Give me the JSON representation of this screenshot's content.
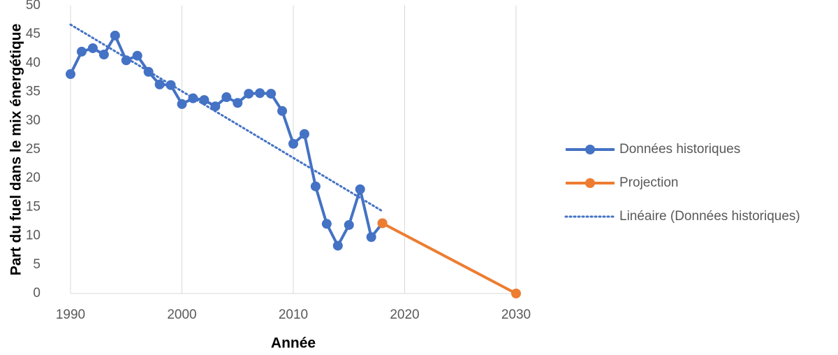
{
  "chart_data": {
    "type": "line",
    "x_label": "Année",
    "y_label": "Part du fuel dans le mix énergétique",
    "xlim": [
      1990,
      2030
    ],
    "xticks": [
      1990,
      2000,
      2010,
      2020,
      2030
    ],
    "ylim": [
      0,
      50
    ],
    "yticks": [
      0,
      5,
      10,
      15,
      20,
      25,
      30,
      35,
      40,
      45,
      50
    ],
    "xgrid": true,
    "legend": "right",
    "series": [
      {
        "name": "Données historiques",
        "color": "#4472c4",
        "markers": true,
        "line_style": "solid",
        "x": [
          1990,
          1991,
          1992,
          1993,
          1994,
          1995,
          1996,
          1997,
          1998,
          1999,
          2000,
          2001,
          2002,
          2003,
          2004,
          2005,
          2006,
          2007,
          2008,
          2009,
          2010,
          2011,
          2012,
          2013,
          2014,
          2015,
          2016,
          2017,
          2018
        ],
        "values": [
          38.1,
          42.0,
          42.6,
          41.5,
          44.8,
          40.5,
          41.3,
          38.5,
          36.3,
          36.2,
          32.9,
          33.9,
          33.6,
          32.5,
          34.1,
          33.1,
          34.7,
          34.8,
          34.7,
          31.7,
          26.0,
          27.7,
          18.6,
          12.1,
          8.3,
          11.9,
          18.1,
          9.8,
          12.2
        ]
      },
      {
        "name": "Projection",
        "color": "#ed7d31",
        "markers": true,
        "line_style": "solid",
        "x": [
          2018,
          2030
        ],
        "values": [
          12.2,
          0
        ]
      },
      {
        "name": "Linéaire (Données historiques)",
        "color": "#4472c4",
        "markers": false,
        "line_style": "dotted",
        "x": [
          1990,
          2018
        ],
        "values": [
          46.7,
          14.3
        ]
      }
    ]
  }
}
